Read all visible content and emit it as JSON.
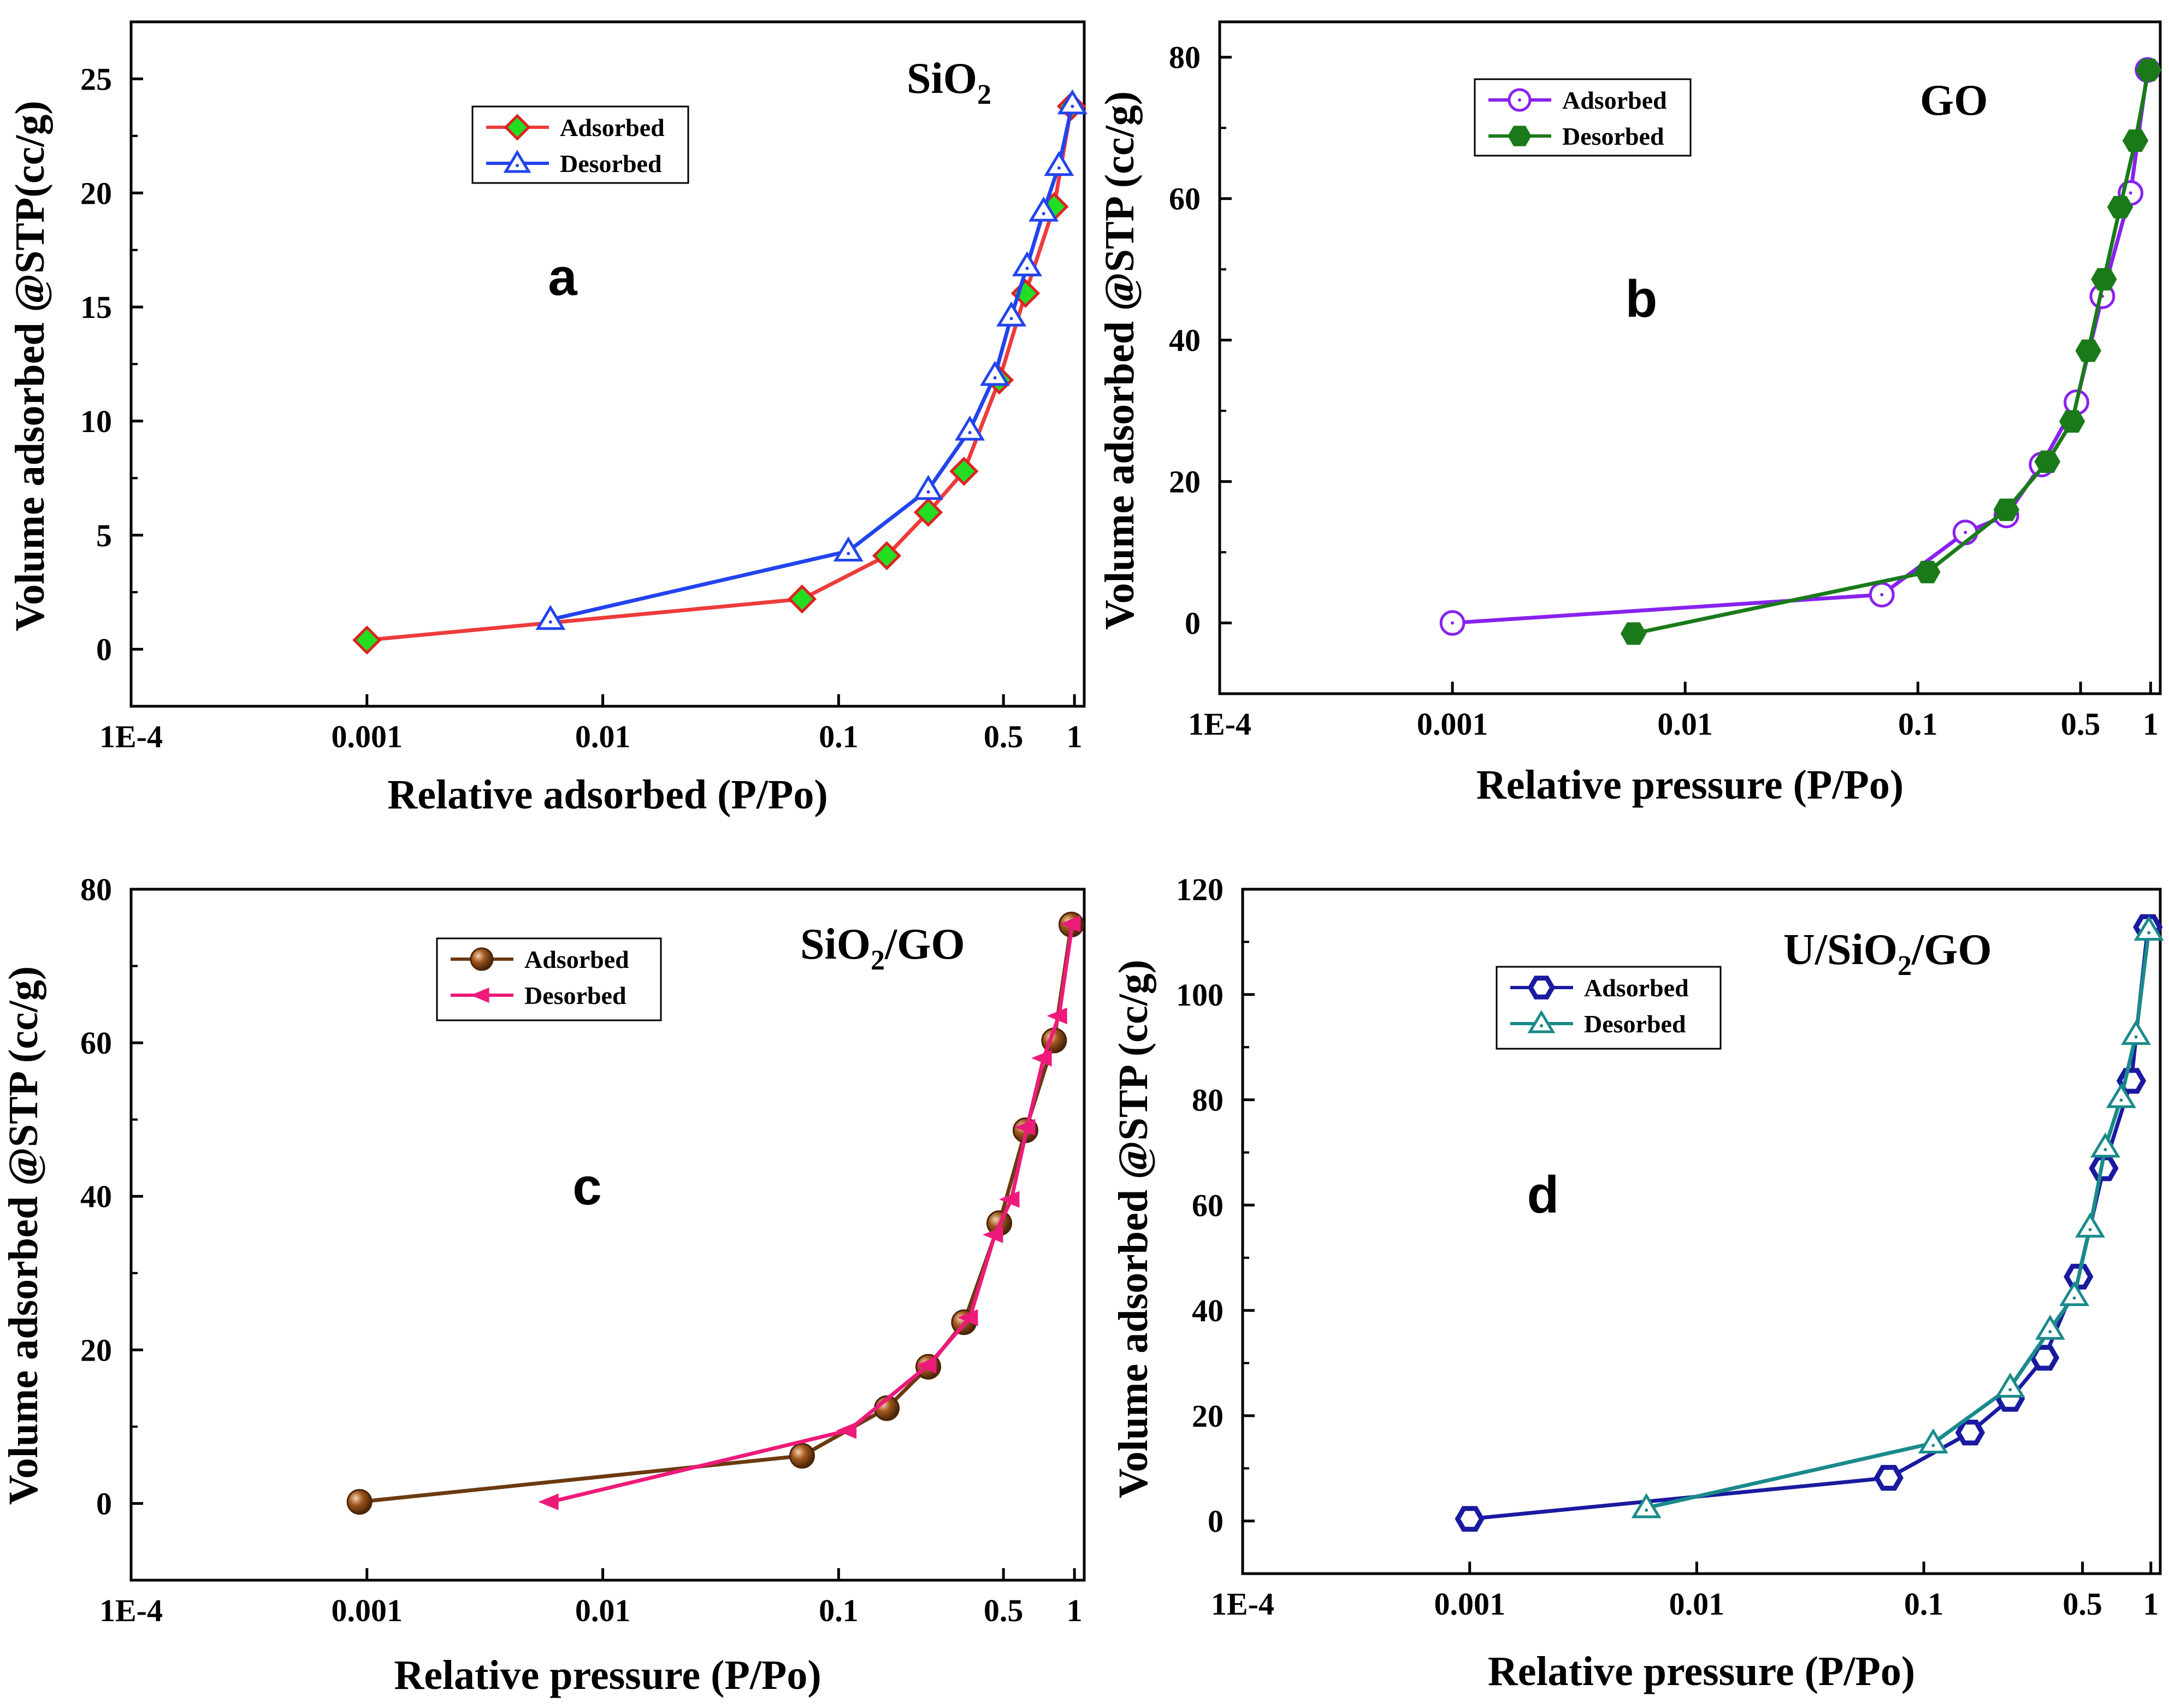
{
  "chart_data": [
    {
      "type": "line",
      "panel": "a",
      "title": "SiO2",
      "title_main": "SiO",
      "title_sub": "2",
      "title_suffix": "",
      "xlabel": "Relative adsorbed (P/Po)",
      "ylabel": "Volume adsorbed @STP(cc/g)",
      "x_scale": "log",
      "xlim": [
        0.0001,
        1.1
      ],
      "ylim": [
        -2.5,
        27.5
      ],
      "x_ticks": [
        0.0001,
        0.001,
        0.01,
        0.1,
        0.5,
        1
      ],
      "x_tick_labels": [
        "1E-4",
        "0.001",
        "0.01",
        "0.1",
        "0.5",
        "1"
      ],
      "y_ticks": [
        0,
        5,
        10,
        15,
        20,
        25
      ],
      "y_tick_labels": [
        "0",
        "5",
        "10",
        "15",
        "20",
        "25"
      ],
      "legend_position": "upper-middle",
      "series": [
        {
          "name": "Adsorbed",
          "marker": "diamond",
          "line_color": "#ee3b3b",
          "marker_fill": "#22dd22",
          "marker_stroke": "#dd2222",
          "x": [
            0.001,
            0.07,
            0.16,
            0.24,
            0.34,
            0.48,
            0.62,
            0.82,
            0.97
          ],
          "y": [
            0.4,
            2.2,
            4.1,
            6.0,
            7.8,
            11.8,
            15.6,
            19.4,
            23.8
          ]
        },
        {
          "name": "Desorbed",
          "marker": "triangle-open",
          "line_color": "#2244ee",
          "marker_fill": "#ffffff",
          "marker_stroke": "#2244ee",
          "x": [
            0.006,
            0.11,
            0.24,
            0.36,
            0.46,
            0.54,
            0.63,
            0.74,
            0.86,
            0.98
          ],
          "y": [
            1.3,
            4.3,
            7.0,
            9.6,
            12.0,
            14.6,
            16.8,
            19.2,
            21.2,
            23.9
          ]
        }
      ]
    },
    {
      "type": "line",
      "panel": "b",
      "title": "GO",
      "title_main": "GO",
      "title_sub": "",
      "title_suffix": "",
      "xlabel": "Relative pressure (P/Po)",
      "ylabel": "Volume adsorbed @STP (cc/g)",
      "x_scale": "log",
      "xlim": [
        0.0001,
        1.1
      ],
      "ylim": [
        -10,
        85
      ],
      "x_ticks": [
        0.0001,
        0.001,
        0.01,
        0.1,
        0.5,
        1
      ],
      "x_tick_labels": [
        "1E-4",
        "0.001",
        "0.01",
        "0.1",
        "0.5",
        "1"
      ],
      "y_ticks": [
        0,
        20,
        40,
        60,
        80
      ],
      "y_tick_labels": [
        "0",
        "20",
        "40",
        "60",
        "80"
      ],
      "legend_position": "upper-left",
      "series": [
        {
          "name": "Adsorbed",
          "marker": "circle-open",
          "line_color": "#8822ee",
          "marker_fill": "#ffffff",
          "marker_stroke": "#8822ee",
          "x": [
            0.001,
            0.07,
            0.16,
            0.24,
            0.34,
            0.48,
            0.62,
            0.82,
            0.97
          ],
          "y": [
            0.0,
            4.0,
            12.8,
            15.2,
            22.4,
            31.2,
            46.2,
            60.8,
            78.2
          ]
        },
        {
          "name": "Desorbed",
          "marker": "hexagon",
          "line_color": "#1a7a1a",
          "marker_fill": "#1a7a1a",
          "marker_stroke": "#1a7a1a",
          "x": [
            0.006,
            0.11,
            0.24,
            0.36,
            0.46,
            0.54,
            0.63,
            0.74,
            0.86,
            0.98
          ],
          "y": [
            -1.5,
            7.2,
            16.0,
            22.8,
            28.5,
            38.5,
            48.6,
            58.8,
            68.2,
            78.2
          ]
        }
      ]
    },
    {
      "type": "line",
      "panel": "c",
      "title": "SiO2/GO",
      "title_main": "SiO",
      "title_sub": "2",
      "title_suffix": "/GO",
      "xlabel": "Relative pressure (P/Po)",
      "ylabel": "Volume adsorbed @STP (cc/g)",
      "x_scale": "log",
      "xlim": [
        0.0001,
        1.1
      ],
      "ylim": [
        -10,
        80
      ],
      "x_ticks": [
        0.0001,
        0.001,
        0.01,
        0.1,
        0.5,
        1
      ],
      "x_tick_labels": [
        "1E-4",
        "0.001",
        "0.01",
        "0.1",
        "0.5",
        "1"
      ],
      "y_ticks": [
        0,
        20,
        40,
        60,
        80
      ],
      "y_tick_labels": [
        "0",
        "20",
        "40",
        "60",
        "80"
      ],
      "legend_position": "upper-left",
      "series": [
        {
          "name": "Adsorbed",
          "marker": "sphere",
          "line_color": "#6b3a10",
          "marker_fill": "#8b4513",
          "marker_stroke": "#4a2508",
          "x": [
            0.00093,
            0.07,
            0.16,
            0.24,
            0.34,
            0.48,
            0.62,
            0.82,
            0.97
          ],
          "y": [
            0.2,
            6.2,
            12.4,
            17.8,
            23.6,
            36.5,
            48.6,
            60.3,
            75.4
          ]
        },
        {
          "name": "Desorbed",
          "marker": "arrow-left",
          "line_color": "#ee1a7a",
          "marker_fill": "#ee1a7a",
          "marker_stroke": "#ee1a7a",
          "x": [
            0.006,
            0.11,
            0.24,
            0.36,
            0.46,
            0.54,
            0.63,
            0.74,
            0.86,
            0.98
          ],
          "y": [
            0.2,
            9.5,
            18.0,
            24.2,
            35.0,
            39.6,
            49.0,
            58.0,
            63.5,
            75.5
          ]
        }
      ]
    },
    {
      "type": "line",
      "panel": "d",
      "title": "U/SiO2/GO",
      "title_main": "U/SiO",
      "title_sub": "2",
      "title_suffix": "/GO",
      "xlabel": "Relative pressure (P/Po)",
      "ylabel": "Volume adsorbed @STP (cc/g)",
      "x_scale": "log",
      "xlim": [
        0.0001,
        1.1
      ],
      "ylim": [
        -10,
        120
      ],
      "x_ticks": [
        0.0001,
        0.001,
        0.01,
        0.1,
        0.5,
        1
      ],
      "x_tick_labels": [
        "1E-4",
        "0.001",
        "0.01",
        "0.1",
        "0.5",
        "1"
      ],
      "y_ticks": [
        0,
        20,
        40,
        60,
        80,
        100,
        120
      ],
      "y_tick_labels": [
        "0",
        "20",
        "40",
        "60",
        "80",
        "100",
        "120"
      ],
      "legend_position": "upper-left",
      "series": [
        {
          "name": "Adsorbed",
          "marker": "hexagon-open",
          "line_color": "#1a1aa0",
          "marker_fill": "#ffffff",
          "marker_stroke": "#1a1aa0",
          "x": [
            0.001,
            0.07,
            0.16,
            0.24,
            0.34,
            0.48,
            0.62,
            0.82,
            0.97
          ],
          "y": [
            0.4,
            8.2,
            16.8,
            23.2,
            31.0,
            46.4,
            67.0,
            83.6,
            112.8
          ]
        },
        {
          "name": "Desorbed",
          "marker": "triangle-open",
          "line_color": "#1a8a8a",
          "marker_fill": "#ffffff",
          "marker_stroke": "#1a8a8a",
          "x": [
            0.006,
            0.11,
            0.24,
            0.36,
            0.46,
            0.54,
            0.63,
            0.74,
            0.86,
            0.98
          ],
          "y": [
            2.5,
            14.8,
            25.4,
            36.4,
            42.8,
            55.8,
            71.0,
            80.4,
            92.4,
            112.2
          ]
        }
      ]
    }
  ]
}
